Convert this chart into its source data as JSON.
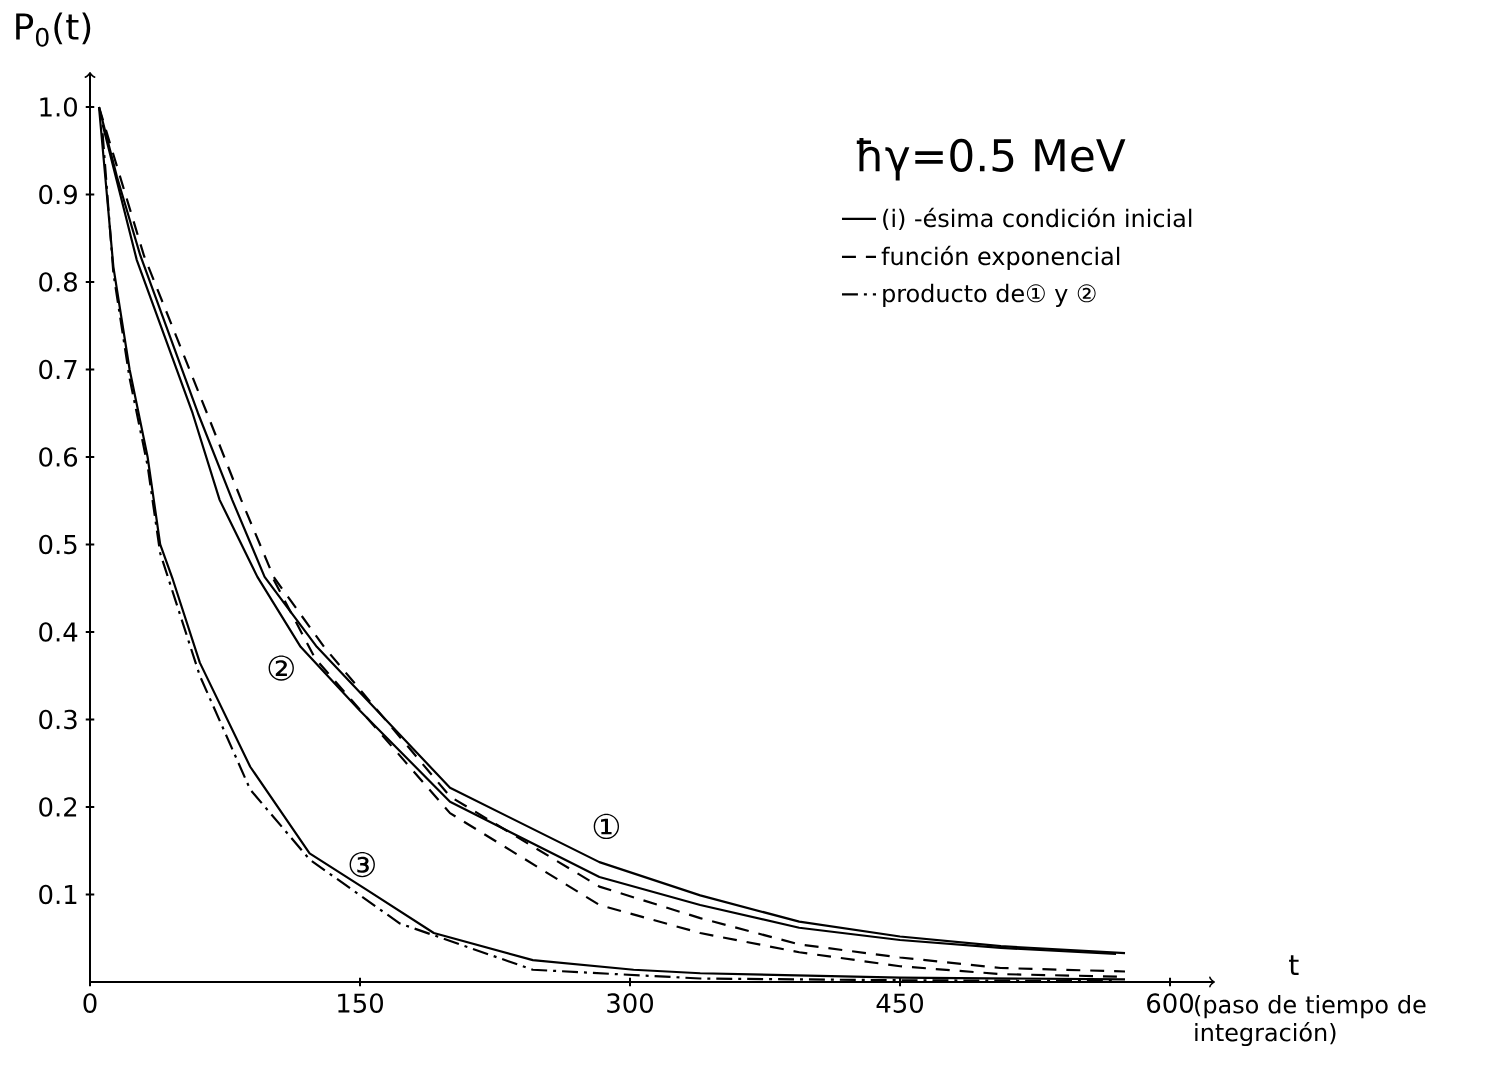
{
  "chart_data": {
    "type": "line",
    "title": "ħγ=0.5 MeV",
    "xlabel": "t",
    "ylabel": "P$_{0}$(t)",
    "xlim": [
      0,
      625
    ],
    "ylim": [
      0,
      1.04
    ],
    "xticks": [
      0,
      150,
      300,
      450,
      600
    ],
    "yticks": [
      0.1,
      0.2,
      0.3,
      0.4,
      0.5,
      0.6,
      0.7,
      0.8,
      0.9,
      {
        "value": 1.0,
        "label": "1.0"
      }
    ],
    "legend": "top right",
    "series": [
      {
        "name": "(i) -ésima condición inicial",
        "color": "#000000",
        "line_style": "solid",
        "x": [
          5,
          15,
          28,
          60,
          79,
          97,
          126,
          200,
          283,
          339,
          394,
          450,
          506,
          575
        ],
        "values": [
          1.0,
          0.92,
          0.83,
          0.65,
          0.551,
          0.463,
          0.383,
          0.222,
          0.137,
          0.099,
          0.069,
          0.052,
          0.041,
          0.033
        ]
      },
      {
        "color": "#000000",
        "line_style": "solid",
        "x": [
          7,
          26,
          57,
          72,
          93,
          117,
          150,
          200,
          283,
          339,
          394,
          450,
          506,
          570
        ],
        "values": [
          0.98,
          0.825,
          0.65,
          0.551,
          0.463,
          0.383,
          0.31,
          0.206,
          0.12,
          0.088,
          0.062,
          0.048,
          0.039,
          0.032
        ]
      },
      {
        "color": "#000000",
        "line_style": "solid",
        "x": [
          5,
          13,
          22,
          32,
          39,
          46,
          61,
          89,
          122,
          154,
          191,
          246,
          302,
          339,
          450,
          575
        ],
        "values": [
          1.0,
          0.817,
          0.7,
          0.6,
          0.5,
          0.46,
          0.365,
          0.246,
          0.147,
          0.105,
          0.056,
          0.025,
          0.014,
          0.01,
          0.005,
          0.003
        ]
      },
      {
        "name": "función exponencial",
        "color": "#000000",
        "line_style": "dashed",
        "x": [
          5,
          30,
          65,
          84,
          102,
          130,
          200,
          283,
          339,
          394,
          450,
          506,
          575
        ],
        "values": [
          1.0,
          0.83,
          0.65,
          0.551,
          0.463,
          0.383,
          0.212,
          0.109,
          0.073,
          0.043,
          0.028,
          0.016,
          0.012
        ]
      },
      {
        "color": "#000000",
        "line_style": "dashed",
        "x": [
          102,
          125,
          200,
          283,
          339,
          394,
          450,
          506,
          575
        ],
        "values": [
          0.46,
          0.37,
          0.193,
          0.088,
          0.056,
          0.034,
          0.018,
          0.009,
          0.006
        ]
      },
      {
        "name": "producto de① y ②",
        "color": "#000000",
        "line_style": "dashdot",
        "x": [
          7,
          13,
          22,
          32,
          39,
          61,
          89,
          122,
          172,
          246,
          339,
          450,
          570
        ],
        "values": [
          0.97,
          0.81,
          0.69,
          0.59,
          0.49,
          0.35,
          0.22,
          0.14,
          0.067,
          0.014,
          0.004,
          0.002,
          0.001
        ]
      }
    ],
    "annotations": [
      "①",
      "②",
      "③",
      "(paso de tiempo de integración)"
    ]
  }
}
